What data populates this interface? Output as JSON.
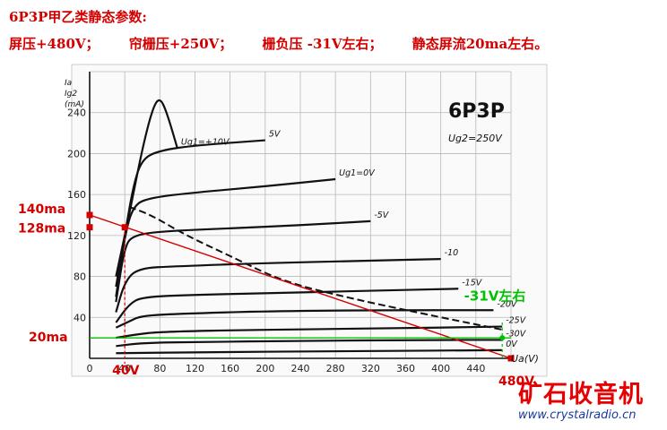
{
  "header": {
    "line1": "6P3P甲乙类静态参数:",
    "items": [
      "屏压+480V；",
      "帘栅压+250V；",
      "栅负压 -31V左右；",
      "静态屏流20ma左右。"
    ]
  },
  "logo": {
    "text": "矿石收音机",
    "url": "www.crystalradio.cn"
  },
  "colors": {
    "annotation_red": "#d40000",
    "green": "#00c000",
    "curve": "#111111",
    "grid": "#b8b8b8"
  },
  "chart_data": {
    "type": "line",
    "title": "6P3P",
    "subtitle": "Ug2=250V",
    "ylabel": "Ia\nIg2\n(mA)",
    "xlabel": "Ua(V)",
    "xlim": [
      0,
      480
    ],
    "ylim": [
      0,
      280
    ],
    "xticks": [
      "0",
      "40",
      "80",
      "120",
      "160",
      "200",
      "240",
      "280",
      "320",
      "360",
      "400",
      "440"
    ],
    "yticks": [
      "40",
      "80",
      "120",
      "160",
      "200",
      "240"
    ],
    "grid": true,
    "series": [
      {
        "name": "Ug1=+10V",
        "points": [
          [
            30,
            80
          ],
          [
            45,
            140
          ],
          [
            60,
            205
          ],
          [
            72,
            245
          ],
          [
            80,
            255
          ],
          [
            88,
            240
          ],
          [
            100,
            205
          ]
        ]
      },
      {
        "name": "5V",
        "points": [
          [
            30,
            70
          ],
          [
            40,
            120
          ],
          [
            50,
            170
          ],
          [
            60,
            195
          ],
          [
            80,
            203
          ],
          [
            120,
            208
          ],
          [
            200,
            213
          ]
        ]
      },
      {
        "name": "Ug1=0V",
        "points": [
          [
            30,
            60
          ],
          [
            40,
            120
          ],
          [
            50,
            150
          ],
          [
            70,
            157
          ],
          [
            120,
            162
          ],
          [
            200,
            168
          ],
          [
            280,
            175
          ]
        ]
      },
      {
        "name": "-5V",
        "points": [
          [
            30,
            55
          ],
          [
            40,
            110
          ],
          [
            50,
            120
          ],
          [
            80,
            124
          ],
          [
            160,
            127
          ],
          [
            240,
            130
          ],
          [
            320,
            134
          ]
        ]
      },
      {
        "name": "-10",
        "points": [
          [
            30,
            45
          ],
          [
            40,
            75
          ],
          [
            55,
            88
          ],
          [
            100,
            90
          ],
          [
            200,
            93
          ],
          [
            300,
            95
          ],
          [
            400,
            97
          ]
        ]
      },
      {
        "name": "-15V",
        "points": [
          [
            30,
            35
          ],
          [
            45,
            53
          ],
          [
            60,
            60
          ],
          [
            120,
            62
          ],
          [
            220,
            64
          ],
          [
            320,
            66
          ],
          [
            420,
            68
          ]
        ]
      },
      {
        "name": "-20V",
        "points": [
          [
            30,
            30
          ],
          [
            45,
            36
          ],
          [
            60,
            42
          ],
          [
            120,
            44
          ],
          [
            200,
            46
          ],
          [
            320,
            47
          ],
          [
            460,
            47
          ]
        ]
      },
      {
        "name": "-25V",
        "points": [
          [
            30,
            20
          ],
          [
            50,
            23
          ],
          [
            80,
            26
          ],
          [
            200,
            28
          ],
          [
            320,
            29
          ],
          [
            470,
            31
          ]
        ]
      },
      {
        "name": "-30V",
        "points": [
          [
            30,
            12
          ],
          [
            60,
            15
          ],
          [
            120,
            16
          ],
          [
            240,
            17
          ],
          [
            380,
            18
          ],
          [
            470,
            18
          ]
        ]
      },
      {
        "name": "0V",
        "points": [
          [
            30,
            5
          ],
          [
            120,
            6
          ],
          [
            300,
            7
          ],
          [
            470,
            8
          ]
        ]
      }
    ],
    "screen_current": {
      "name": "Ig2",
      "points": [
        [
          45,
          148
        ],
        [
          70,
          140
        ],
        [
          110,
          120
        ],
        [
          160,
          100
        ],
        [
          220,
          75
        ],
        [
          300,
          58
        ],
        [
          400,
          40
        ],
        [
          470,
          28
        ]
      ]
    },
    "load_line": {
      "from": [
        0,
        140
      ],
      "to": [
        480,
        0
      ]
    },
    "operating_point": {
      "x": 40,
      "y": 128
    },
    "quiescent_current": 20,
    "annotations": {
      "y140": "140ma",
      "y128": "128ma",
      "y20": "20ma",
      "x40": "40V",
      "x480": "480V",
      "bias": "-31V左右"
    }
  }
}
